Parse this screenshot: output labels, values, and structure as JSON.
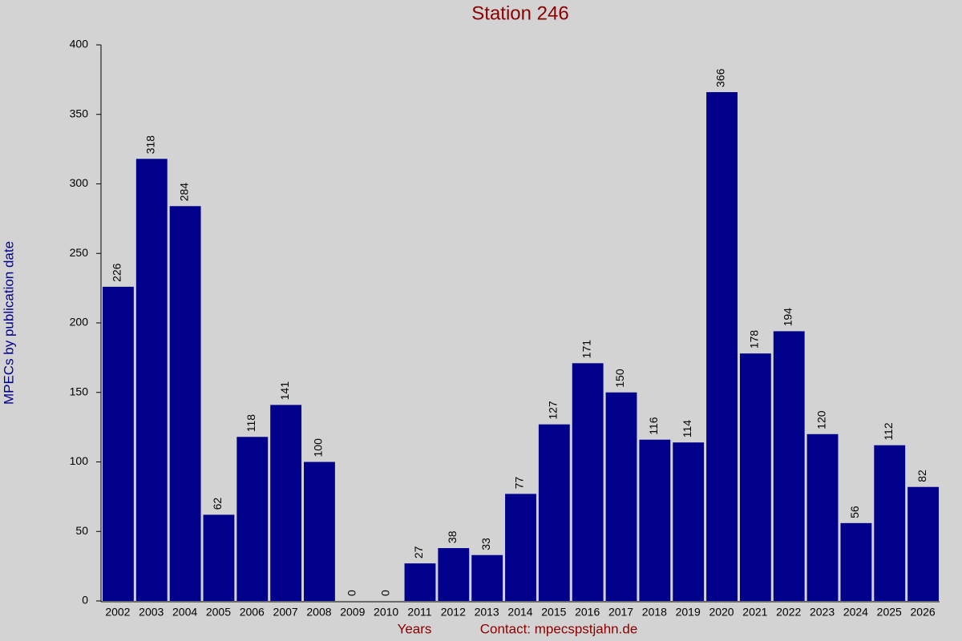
{
  "chart_data": {
    "type": "bar",
    "title": "Station 246",
    "x_label": "Years",
    "y_label": "MPECs by publication date",
    "annotation": "Contact: mpecspstjahn.de",
    "categories": [
      "2002",
      "2003",
      "2004",
      "2005",
      "2006",
      "2007",
      "2008",
      "2009",
      "2010",
      "2011",
      "2012",
      "2013",
      "2014",
      "2015",
      "2016",
      "2017",
      "2018",
      "2019",
      "2020",
      "2021",
      "2022",
      "2023",
      "2024",
      "2025",
      "2026"
    ],
    "values": [
      226,
      318,
      284,
      62,
      118,
      141,
      100,
      0,
      0,
      27,
      38,
      33,
      77,
      127,
      171,
      150,
      116,
      114,
      366,
      178,
      194,
      120,
      56,
      112,
      82
    ],
    "color": "#00008b",
    "ylim": [
      0,
      400
    ],
    "yticks": [
      0,
      50,
      100,
      150,
      200,
      250,
      300,
      350,
      400
    ],
    "grid": false
  }
}
